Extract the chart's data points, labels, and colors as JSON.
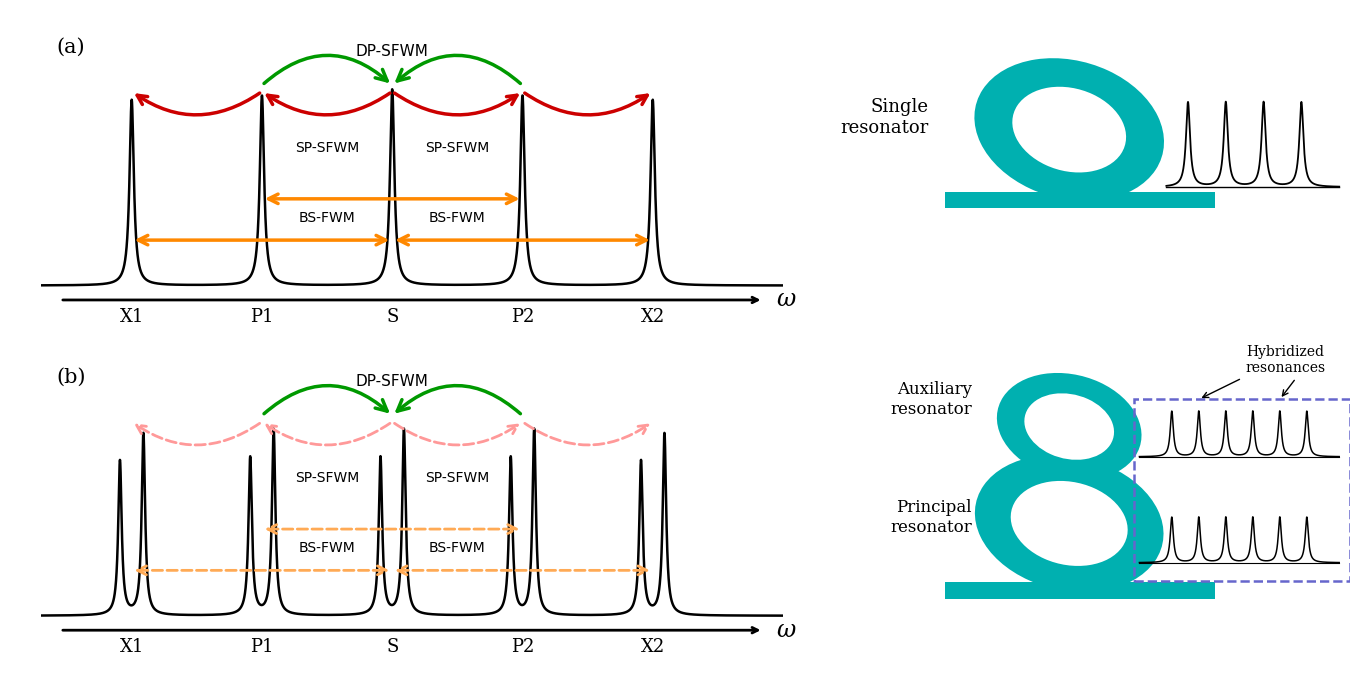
{
  "panel_a_label": "(a)",
  "panel_b_label": "(b)",
  "peak_labels": [
    "X1",
    "P1",
    "S",
    "P2",
    "X2"
  ],
  "omega_label": "ω",
  "dp_sfwm_label": "DP-SFWM",
  "sp_sfwm_label": "SP-SFWM",
  "bs_fwm_label": "BS-FWM",
  "green_color": "#009900",
  "red_color": "#cc0000",
  "orange_color": "#ff8800",
  "pink_color": "#ff9999",
  "orange_dashed": "#ffaa55",
  "teal_color": "#00b0b0",
  "teal_dark": "#007a7a",
  "single_resonator_label": "Single\nresonator",
  "auxiliary_resonator_label": "Auxiliary\nresonator",
  "principal_resonator_label": "Principal\nresonator",
  "hybridized_label": "Hybridized\nresonances",
  "background_color": "#ffffff"
}
